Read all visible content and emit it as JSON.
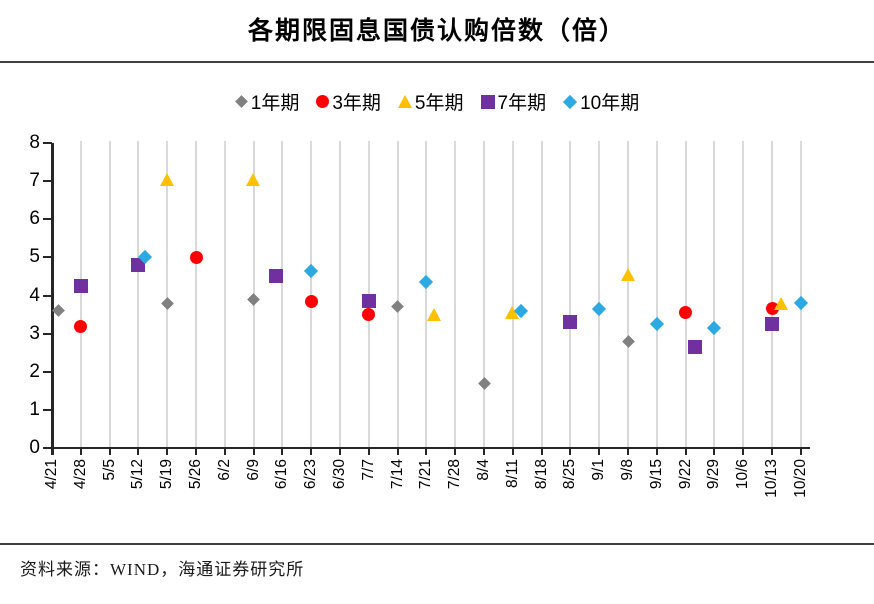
{
  "page": {
    "title": "各期限固息国债认购倍数（倍）",
    "source_note": "资料来源：WIND，海通证券研究所"
  },
  "colors": {
    "series_1y": "#808080",
    "series_3y": "#fe0000",
    "series_5y": "#ffc000",
    "series_7y": "#7030a0",
    "series_10y": "#2ca9e1",
    "gridline": "#d9d9d9",
    "axis": "#262626"
  },
  "chart_data": {
    "type": "scatter",
    "title": "各期限固息国债认购倍数（倍）",
    "xlabel": "",
    "ylabel": "",
    "ylim": [
      0,
      8
    ],
    "yticks": [
      0,
      1,
      2,
      3,
      4,
      5,
      6,
      7,
      8
    ],
    "grid": "vertical",
    "legend_position": "top",
    "categories": [
      "4/21",
      "4/28",
      "5/5",
      "5/12",
      "5/19",
      "5/26",
      "6/2",
      "6/9",
      "6/16",
      "6/23",
      "6/30",
      "7/7",
      "7/14",
      "7/21",
      "7/28",
      "8/4",
      "8/11",
      "8/18",
      "8/25",
      "9/1",
      "9/8",
      "9/15",
      "9/22",
      "9/29",
      "10/6",
      "10/13",
      "10/20"
    ],
    "series": [
      {
        "name": "1年期",
        "marker": "diamond",
        "color": "#808080",
        "points": [
          {
            "x": "4/21",
            "y": 3.6,
            "dx": 6
          },
          {
            "x": "5/19",
            "y": 3.8
          },
          {
            "x": "6/9",
            "y": 3.9
          },
          {
            "x": "7/14",
            "y": 3.7
          },
          {
            "x": "8/4",
            "y": 1.7
          },
          {
            "x": "9/8",
            "y": 2.8
          }
        ]
      },
      {
        "name": "3年期",
        "marker": "circle",
        "color": "#fe0000",
        "points": [
          {
            "x": "4/28",
            "y": 3.2
          },
          {
            "x": "5/26",
            "y": 5.0
          },
          {
            "x": "6/23",
            "y": 3.85
          },
          {
            "x": "7/7",
            "y": 3.5
          },
          {
            "x": "9/22",
            "y": 3.55
          },
          {
            "x": "10/13",
            "y": 3.65
          }
        ]
      },
      {
        "name": "5年期",
        "marker": "triangle",
        "color": "#ffc000",
        "points": [
          {
            "x": "5/19",
            "y": 7.0
          },
          {
            "x": "6/9",
            "y": 7.0
          },
          {
            "x": "7/21",
            "y": 3.45,
            "dx": 8
          },
          {
            "x": "8/11",
            "y": 3.5
          },
          {
            "x": "9/8",
            "y": 4.5
          },
          {
            "x": "10/13",
            "y": 3.75,
            "dx": 9
          }
        ]
      },
      {
        "name": "7年期",
        "marker": "square",
        "color": "#7030a0",
        "points": [
          {
            "x": "4/28",
            "y": 4.25
          },
          {
            "x": "5/12",
            "y": 4.8
          },
          {
            "x": "6/16",
            "y": 4.5,
            "dx": -6
          },
          {
            "x": "7/7",
            "y": 3.85
          },
          {
            "x": "8/25",
            "y": 3.3
          },
          {
            "x": "9/22",
            "y": 2.65,
            "dx": 9
          },
          {
            "x": "10/13",
            "y": 3.25
          }
        ]
      },
      {
        "name": "10年期",
        "marker": "diamond",
        "color": "#2ca9e1",
        "points": [
          {
            "x": "5/12",
            "y": 5.0,
            "dx": 7
          },
          {
            "x": "6/23",
            "y": 4.65
          },
          {
            "x": "7/21",
            "y": 4.35
          },
          {
            "x": "8/11",
            "y": 3.6,
            "dx": 8
          },
          {
            "x": "9/1",
            "y": 3.65
          },
          {
            "x": "9/15",
            "y": 3.25
          },
          {
            "x": "9/29",
            "y": 3.15
          },
          {
            "x": "10/20",
            "y": 3.8
          }
        ]
      }
    ]
  }
}
